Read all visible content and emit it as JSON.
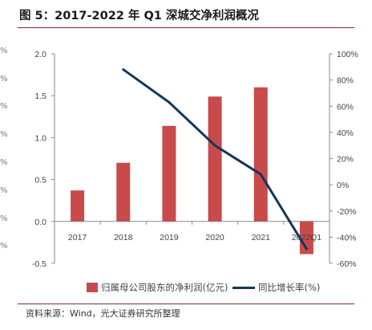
{
  "figure": {
    "title": "图 5：2017-2022 年 Q1 深城交净利润概况",
    "source": "资料来源：Wind，光大证券研究所整理",
    "edge_marks": [
      "%",
      "%",
      "%",
      "%",
      "%",
      "%",
      "%",
      "%"
    ]
  },
  "chart_data": {
    "type": "bar",
    "categories": [
      "2017",
      "2018",
      "2019",
      "2020",
      "2021",
      "2022Q1"
    ],
    "series": [
      {
        "name": "归属母公司股东的净利润(亿元)",
        "type": "bar",
        "axis": "left",
        "color": "#c94a4a",
        "values": [
          0.37,
          0.7,
          1.14,
          1.49,
          1.6,
          -0.39
        ]
      },
      {
        "name": "同比增长率(%)",
        "type": "line",
        "axis": "right",
        "color": "#16365a",
        "values": [
          null,
          88,
          63,
          30,
          8,
          -49
        ]
      }
    ],
    "y_left": {
      "min": -0.5,
      "max": 2.0,
      "ticks": [
        "-0.5",
        "0.0",
        "0.5",
        "1.0",
        "1.5",
        "2.0"
      ]
    },
    "y_right": {
      "min": -60,
      "max": 100,
      "ticks": [
        "-60%",
        "-40%",
        "-20%",
        "0%",
        "20%",
        "40%",
        "60%",
        "80%",
        "100%"
      ]
    },
    "xlabel": "",
    "ylabel": "",
    "grid": false,
    "legend_position": "bottom"
  }
}
